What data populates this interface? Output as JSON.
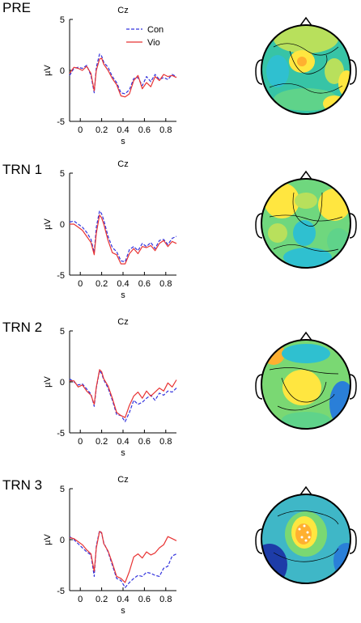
{
  "chart_data": [
    {
      "type": "line",
      "panel_label": "PRE",
      "title": "Cz",
      "xlabel": "s",
      "ylabel": "µV",
      "xlim": [
        -0.1,
        0.9
      ],
      "ylim": [
        -5,
        5
      ],
      "xticks": [
        0,
        0.2,
        0.4,
        0.6,
        0.8
      ],
      "xtick_labels": [
        "0",
        "0.2",
        "0.4",
        "0.6",
        "0.8"
      ],
      "yticks": [
        -5,
        0,
        5
      ],
      "ytick_labels": [
        "-5",
        "0",
        "5"
      ],
      "legend": "top-right",
      "series": [
        {
          "name": "Con",
          "color": "#3333dd",
          "dash": true,
          "x": [
            -0.1,
            -0.06,
            -0.02,
            0.02,
            0.06,
            0.1,
            0.13,
            0.15,
            0.18,
            0.2,
            0.22,
            0.26,
            0.3,
            0.34,
            0.38,
            0.42,
            0.46,
            0.5,
            0.54,
            0.58,
            0.62,
            0.66,
            0.7,
            0.74,
            0.78,
            0.82,
            0.86,
            0.9
          ],
          "y": [
            -0.5,
            0.2,
            0.3,
            0.2,
            0.5,
            -0.5,
            -2.2,
            0.3,
            1.6,
            1.4,
            0.8,
            0.3,
            -0.6,
            -1.2,
            -2.2,
            -2.3,
            -1.9,
            -0.8,
            -0.7,
            -1.5,
            -0.6,
            -1.1,
            -0.4,
            -0.9,
            -0.7,
            -0.9,
            -0.4,
            -0.6
          ]
        },
        {
          "name": "Vio",
          "color": "#e83333",
          "dash": false,
          "x": [
            -0.1,
            -0.06,
            -0.02,
            0.02,
            0.06,
            0.1,
            0.13,
            0.15,
            0.18,
            0.2,
            0.22,
            0.26,
            0.3,
            0.34,
            0.38,
            0.42,
            0.46,
            0.5,
            0.54,
            0.58,
            0.62,
            0.66,
            0.7,
            0.74,
            0.78,
            0.82,
            0.86,
            0.9
          ],
          "y": [
            -0.3,
            0.3,
            0.2,
            0.0,
            0.4,
            -0.3,
            -2.0,
            0.0,
            1.1,
            1.2,
            0.6,
            0.0,
            -0.8,
            -1.4,
            -2.5,
            -2.6,
            -2.3,
            -1.0,
            -0.5,
            -1.8,
            -1.2,
            -1.6,
            -0.6,
            -1.0,
            -0.4,
            -0.6,
            -0.5,
            -0.7
          ]
        }
      ]
    },
    {
      "type": "line",
      "panel_label": "TRN 1",
      "title": "Cz",
      "xlabel": "s",
      "ylabel": "µV",
      "xlim": [
        -0.1,
        0.9
      ],
      "ylim": [
        -5,
        5
      ],
      "xticks": [
        0,
        0.2,
        0.4,
        0.6,
        0.8
      ],
      "xtick_labels": [
        "0",
        "0.2",
        "0.4",
        "0.6",
        "0.8"
      ],
      "yticks": [
        -5,
        0,
        5
      ],
      "ytick_labels": [
        "-5",
        "0",
        "5"
      ],
      "series": [
        {
          "name": "Con",
          "color": "#3333dd",
          "dash": true,
          "x": [
            -0.1,
            -0.06,
            -0.02,
            0.02,
            0.06,
            0.1,
            0.13,
            0.15,
            0.18,
            0.2,
            0.22,
            0.26,
            0.3,
            0.34,
            0.38,
            0.42,
            0.46,
            0.5,
            0.54,
            0.58,
            0.62,
            0.66,
            0.7,
            0.74,
            0.78,
            0.82,
            0.86,
            0.9
          ],
          "y": [
            0.2,
            0.3,
            0.0,
            -0.3,
            -0.8,
            -1.5,
            -2.8,
            -0.3,
            1.3,
            1.0,
            0.4,
            -1.2,
            -2.3,
            -2.7,
            -3.6,
            -3.7,
            -2.5,
            -2.2,
            -2.6,
            -1.9,
            -2.2,
            -1.8,
            -2.4,
            -1.6,
            -1.5,
            -2.0,
            -1.4,
            -1.2
          ]
        },
        {
          "name": "Vio",
          "color": "#e83333",
          "dash": false,
          "x": [
            -0.1,
            -0.06,
            -0.02,
            0.02,
            0.06,
            0.1,
            0.13,
            0.15,
            0.18,
            0.2,
            0.22,
            0.26,
            0.3,
            0.34,
            0.38,
            0.42,
            0.46,
            0.5,
            0.54,
            0.58,
            0.62,
            0.66,
            0.7,
            0.74,
            0.78,
            0.82,
            0.86,
            0.9
          ],
          "y": [
            0.0,
            0.0,
            -0.3,
            -0.6,
            -1.2,
            -1.8,
            -3.0,
            -0.9,
            0.9,
            0.6,
            0.0,
            -1.6,
            -2.8,
            -3.0,
            -3.9,
            -3.9,
            -2.9,
            -2.4,
            -2.9,
            -2.2,
            -2.3,
            -2.1,
            -2.6,
            -1.9,
            -1.6,
            -2.2,
            -1.7,
            -1.9
          ]
        }
      ]
    },
    {
      "type": "line",
      "panel_label": "TRN 2",
      "title": "Cz",
      "xlabel": "s",
      "ylabel": "µV",
      "xlim": [
        -0.1,
        0.9
      ],
      "ylim": [
        -5,
        5
      ],
      "xticks": [
        0,
        0.2,
        0.4,
        0.6,
        0.8
      ],
      "xtick_labels": [
        "0",
        "0.2",
        "0.4",
        "0.6",
        "0.8"
      ],
      "yticks": [
        -5,
        0,
        5
      ],
      "ytick_labels": [
        "-5",
        "0",
        "5"
      ],
      "series": [
        {
          "name": "Con",
          "color": "#3333dd",
          "dash": true,
          "x": [
            -0.1,
            -0.06,
            -0.02,
            0.02,
            0.06,
            0.1,
            0.13,
            0.15,
            0.18,
            0.2,
            0.22,
            0.26,
            0.3,
            0.34,
            0.38,
            0.42,
            0.46,
            0.5,
            0.54,
            0.58,
            0.62,
            0.66,
            0.7,
            0.74,
            0.78,
            0.82,
            0.86,
            0.9
          ],
          "y": [
            0.3,
            0.0,
            -0.3,
            -0.2,
            -0.7,
            -1.2,
            -2.4,
            -0.6,
            1.1,
            0.8,
            0.2,
            -0.6,
            -1.8,
            -3.2,
            -3.3,
            -3.9,
            -3.0,
            -1.8,
            -2.2,
            -2.0,
            -1.6,
            -1.3,
            -1.8,
            -1.1,
            -1.3,
            -0.9,
            -1.0,
            -0.6
          ]
        },
        {
          "name": "Vio",
          "color": "#e83333",
          "dash": false,
          "x": [
            -0.1,
            -0.06,
            -0.02,
            0.02,
            0.06,
            0.1,
            0.13,
            0.15,
            0.18,
            0.2,
            0.22,
            0.26,
            0.3,
            0.34,
            0.38,
            0.42,
            0.46,
            0.5,
            0.54,
            0.58,
            0.62,
            0.66,
            0.7,
            0.74,
            0.78,
            0.82,
            0.86,
            0.9
          ],
          "y": [
            0.1,
            0.1,
            -0.5,
            -0.3,
            -0.9,
            -1.3,
            -2.2,
            -0.5,
            1.2,
            1.0,
            0.3,
            -0.4,
            -1.6,
            -3.0,
            -3.3,
            -3.5,
            -2.3,
            -1.4,
            -1.0,
            -1.6,
            -0.9,
            -1.4,
            -1.0,
            -0.6,
            -0.9,
            -0.1,
            -0.5,
            0.2
          ]
        }
      ]
    },
    {
      "type": "line",
      "panel_label": "TRN 3",
      "title": "Cz",
      "xlabel": "s",
      "ylabel": "µV",
      "xlim": [
        -0.1,
        0.9
      ],
      "ylim": [
        -5,
        5
      ],
      "xticks": [
        0,
        0.2,
        0.4,
        0.6,
        0.8
      ],
      "xtick_labels": [
        "0",
        "0.2",
        "0.4",
        "0.6",
        "0.8"
      ],
      "yticks": [
        -5,
        0,
        5
      ],
      "ytick_labels": [
        "-5",
        "0",
        "5"
      ],
      "series": [
        {
          "name": "Con",
          "color": "#3333dd",
          "dash": true,
          "x": [
            -0.1,
            -0.06,
            -0.02,
            0.02,
            0.06,
            0.1,
            0.13,
            0.15,
            0.18,
            0.2,
            0.22,
            0.26,
            0.3,
            0.34,
            0.38,
            0.42,
            0.46,
            0.5,
            0.54,
            0.58,
            0.62,
            0.66,
            0.7,
            0.74,
            0.78,
            0.82,
            0.86,
            0.9
          ],
          "y": [
            0.3,
            0.0,
            -0.4,
            -0.8,
            -1.2,
            -1.5,
            -3.6,
            -0.6,
            0.9,
            0.6,
            -0.3,
            -1.2,
            -2.5,
            -3.8,
            -4.0,
            -4.7,
            -4.2,
            -3.8,
            -3.5,
            -3.6,
            -3.2,
            -3.3,
            -3.5,
            -3.6,
            -2.8,
            -2.6,
            -1.6,
            -1.4
          ]
        },
        {
          "name": "Vio",
          "color": "#e83333",
          "dash": false,
          "x": [
            -0.1,
            -0.06,
            -0.02,
            0.02,
            0.06,
            0.1,
            0.13,
            0.15,
            0.18,
            0.2,
            0.22,
            0.26,
            0.3,
            0.34,
            0.38,
            0.42,
            0.46,
            0.5,
            0.54,
            0.58,
            0.62,
            0.66,
            0.7,
            0.74,
            0.78,
            0.82,
            0.86,
            0.9
          ],
          "y": [
            0.2,
            0.1,
            -0.2,
            -0.5,
            -1.0,
            -1.4,
            -3.1,
            -0.8,
            0.8,
            0.7,
            -0.4,
            -1.1,
            -2.3,
            -3.6,
            -3.8,
            -4.2,
            -3.1,
            -1.7,
            -1.4,
            -1.8,
            -1.2,
            -1.5,
            -1.3,
            -0.8,
            -0.5,
            0.3,
            0.1,
            -0.1
          ]
        }
      ]
    }
  ],
  "topomaps": [
    {
      "panel": "PRE",
      "background": "#37c4a6",
      "colors": {
        "yellow": "#ffe640",
        "lightgreen": "#b8e05c",
        "green": "#5fd38a",
        "cyan": "#2fc0d0",
        "blue": "#2a7fd8",
        "darkblue": "#1d3ca8",
        "orange": "#ffb030"
      }
    },
    {
      "panel": "TRN 1",
      "background": "#6fd77e"
    },
    {
      "panel": "TRN 2",
      "background": "#7ad873"
    },
    {
      "panel": "TRN 3",
      "background": "#3fb7c7"
    }
  ]
}
